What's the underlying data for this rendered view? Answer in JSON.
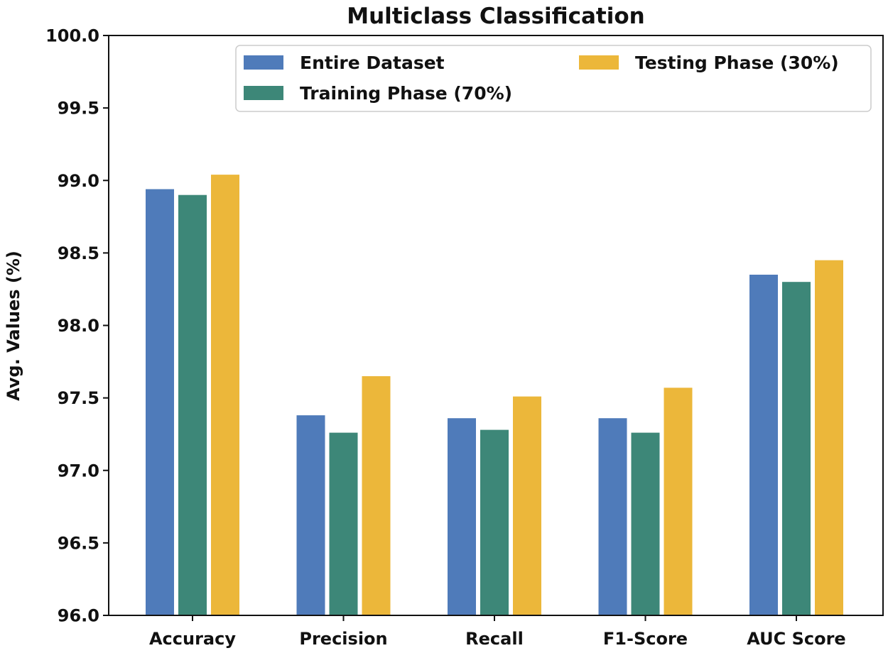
{
  "chart_data": {
    "type": "bar",
    "title": "Multiclass Classification",
    "xlabel": "",
    "ylabel": "Avg. Values (%)",
    "ylim": [
      96.0,
      100.0
    ],
    "yticks": [
      "96.0",
      "96.5",
      "97.0",
      "97.5",
      "98.0",
      "98.5",
      "99.0",
      "99.5",
      "100.0"
    ],
    "categories": [
      "Accuracy",
      "Precision",
      "Recall",
      "F1-Score",
      "AUC Score"
    ],
    "series": [
      {
        "name": "Entire Dataset",
        "color": "#4f7bba",
        "values": [
          98.94,
          97.38,
          97.36,
          97.36,
          98.35
        ]
      },
      {
        "name": "Training Phase (70%)",
        "color": "#3d8778",
        "values": [
          98.9,
          97.26,
          97.28,
          97.26,
          98.3
        ]
      },
      {
        "name": "Testing Phase (30%)",
        "color": "#ecb73a",
        "values": [
          99.04,
          97.65,
          97.51,
          97.57,
          98.45
        ]
      }
    ],
    "legend_position": "top-right",
    "grid": false
  }
}
